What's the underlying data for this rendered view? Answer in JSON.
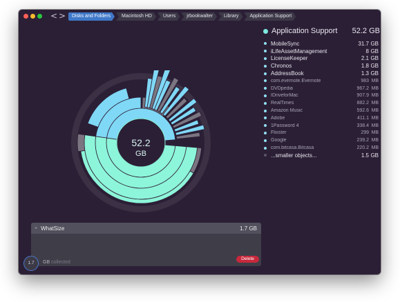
{
  "window": {
    "traffic_lights": [
      "close",
      "minimize",
      "zoom"
    ],
    "nav": {
      "back_icon": "chevron-left-icon",
      "forward_icon": "chevron-right-icon",
      "back": "<",
      "forward": ">"
    }
  },
  "breadcrumbs": [
    {
      "label": "Disks and Folders",
      "active": true
    },
    {
      "label": "Macintosh HD",
      "active": false
    },
    {
      "label": "Users",
      "active": false
    },
    {
      "label": "jrbookwalter",
      "active": false
    },
    {
      "label": "Library",
      "active": false
    },
    {
      "label": "Application Support",
      "active": false
    }
  ],
  "sunburst": {
    "center_value": "52.2",
    "center_unit": "GB",
    "colors": {
      "inner": "#8df5d9",
      "outer": "#7fd8f6",
      "gray": "#7a7580",
      "shadow": "#3b3044",
      "stroke": "#2b1f36"
    }
  },
  "panel": {
    "title": "Application Support",
    "total": "52.2 GB",
    "items": [
      {
        "name": "MobileSync",
        "value": "31.7",
        "unit": "GB",
        "small": false
      },
      {
        "name": "iLifeAssetManagement",
        "value": "8",
        "unit": "GB",
        "small": false
      },
      {
        "name": "LicenseKeeper",
        "value": "2.1",
        "unit": "GB",
        "small": false
      },
      {
        "name": "Chronos",
        "value": "1.8",
        "unit": "GB",
        "small": false
      },
      {
        "name": "AddressBook",
        "value": "1.3",
        "unit": "GB",
        "small": false
      },
      {
        "name": "com.evernote.Evernote",
        "value": "983",
        "unit": "MB",
        "small": true
      },
      {
        "name": "DVDpedia",
        "value": "967.2",
        "unit": "MB",
        "small": true
      },
      {
        "name": "IDriveforMac",
        "value": "907.9",
        "unit": "MB",
        "small": true
      },
      {
        "name": "RealTimes",
        "value": "882.2",
        "unit": "MB",
        "small": true
      },
      {
        "name": "Amazon Music",
        "value": "592.6",
        "unit": "MB",
        "small": true
      },
      {
        "name": "Adobe",
        "value": "411.1",
        "unit": "MB",
        "small": true
      },
      {
        "name": "1Password 4",
        "value": "338.4",
        "unit": "MB",
        "small": true
      },
      {
        "name": "Flixster",
        "value": "299",
        "unit": "MB",
        "small": true
      },
      {
        "name": "Google",
        "value": "239.2",
        "unit": "MB",
        "small": true
      },
      {
        "name": "com.bitcasa.Bitcasa",
        "value": "220.2",
        "unit": "MB",
        "small": true
      },
      {
        "name": "...smaller objects...",
        "value": "1.5",
        "unit": "GB",
        "small": false,
        "more": true
      }
    ]
  },
  "collection": {
    "item_name": "WhatSize",
    "item_size": "1.7 GB",
    "remove_icon": "close-icon",
    "remove_glyph": "×",
    "counter": "1.7",
    "collected_unit": "GB",
    "collected_label": "collected",
    "delete_label": "Delete"
  }
}
